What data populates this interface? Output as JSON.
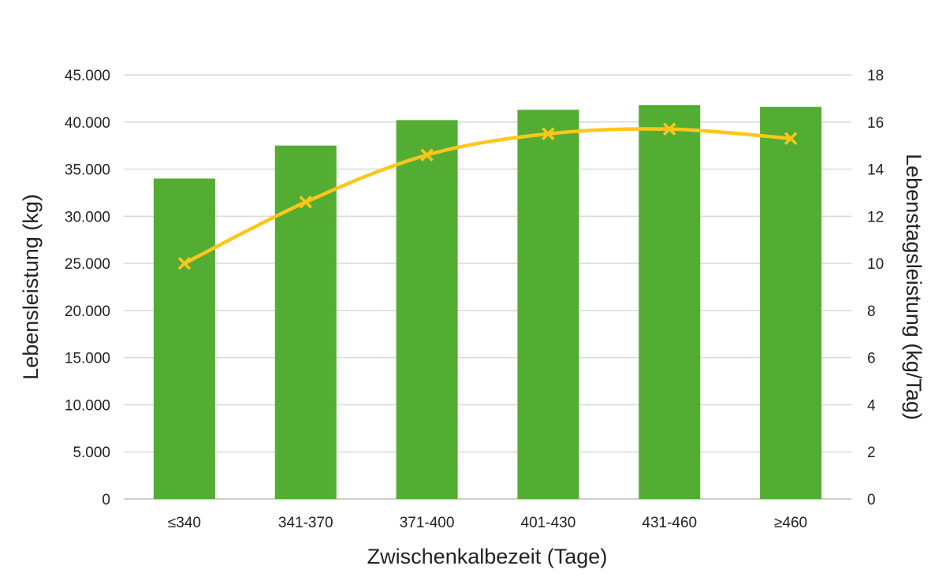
{
  "chart_data": {
    "type": "bar",
    "categories": [
      "≤340",
      "341-370",
      "371-400",
      "401-430",
      "431-460",
      "≥460"
    ],
    "xlabel": "Zwischenkalbezeit (Tage)",
    "ylabel": "Lebensleistung (kg)",
    "y2label": "Lebenstagsleistung (kg/Tag)",
    "ylim": [
      0,
      45000
    ],
    "y2lim": [
      0,
      18
    ],
    "yticks": [
      "0",
      "5.000",
      "10.000",
      "15.000",
      "20.000",
      "25.000",
      "30.000",
      "35.000",
      "40.000",
      "45.000"
    ],
    "y2ticks": [
      "0",
      "2",
      "4",
      "6",
      "8",
      "10",
      "12",
      "14",
      "16",
      "18"
    ],
    "grid": true,
    "series": [
      {
        "type": "bar",
        "axis": "left",
        "color": "#52ad32",
        "values": [
          34000,
          37500,
          40200,
          41300,
          41800,
          41600
        ]
      },
      {
        "type": "line",
        "axis": "right",
        "color": "#ffc61a",
        "marker": "x",
        "values": [
          10.0,
          12.6,
          14.6,
          15.5,
          15.7,
          15.3
        ]
      }
    ]
  }
}
